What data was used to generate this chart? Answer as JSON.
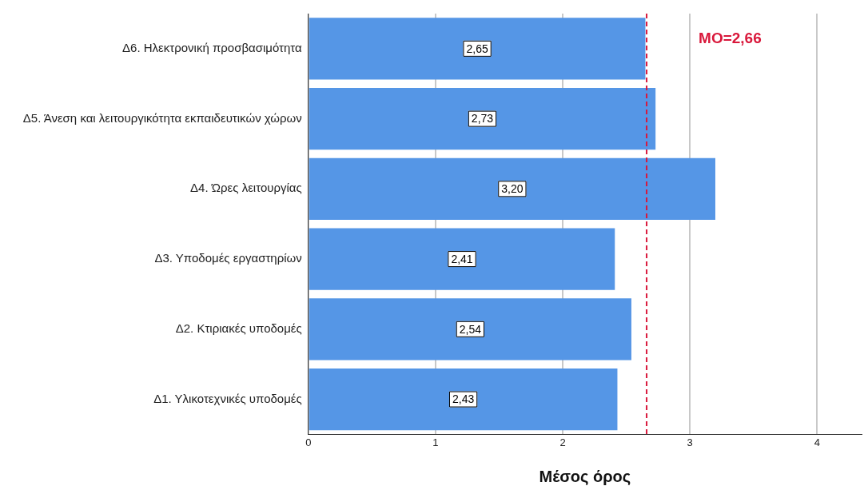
{
  "chart_data": {
    "type": "bar",
    "orientation": "horizontal",
    "xlabel": "Μέσος όρος",
    "categories": [
      "Δ6. Ηλεκτρονική προσβασιμότητα",
      "Δ5. Άνεση και λειτουργικότητα εκπαιδευτικών χώρων",
      "Δ4. Ώρες λειτουργίας",
      "Δ3. Υποδομές εργαστηρίων",
      "Δ2. Κτιριακές υποδομές",
      "Δ1. Υλικοτεχνικές υποδομές"
    ],
    "values": [
      2.65,
      2.73,
      3.2,
      2.41,
      2.54,
      2.43
    ],
    "value_labels": [
      "2,65",
      "2,73",
      "3,20",
      "2,41",
      "2,54",
      "2,43"
    ],
    "color": "#5596e6",
    "xlim": [
      0,
      4.35
    ],
    "xticks": [
      0,
      1,
      2,
      3,
      4
    ],
    "grid": "x",
    "legend": false,
    "ref_lines": [
      {
        "axis": "x",
        "value": 2.66,
        "label": "MO=2,66",
        "color": "#d9183b",
        "line_style": "dashed"
      }
    ]
  }
}
